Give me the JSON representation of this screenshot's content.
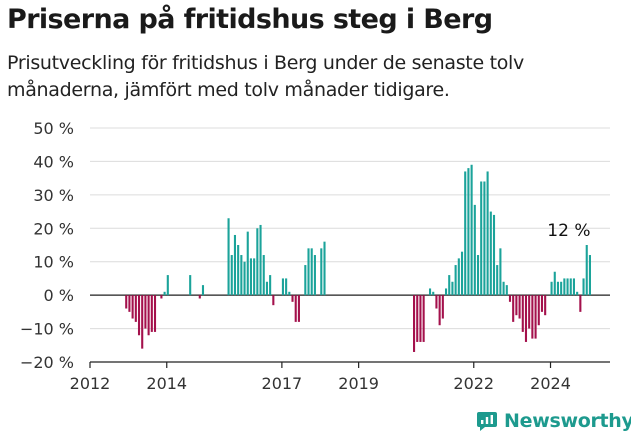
{
  "title": "Priserna på fritidshus steg i Berg",
  "subtitle": "Prisutveckling för fritidshus i Berg under de senaste tolv månaderna, jämfört med tolv månader tidigare.",
  "brand": {
    "name": "Newsworthy",
    "icon": "newsworthy-logo-icon",
    "color": "#1d9a8e"
  },
  "chart_data": {
    "type": "bar",
    "x_ticks": [
      "2012",
      "2014",
      "2017",
      "2019",
      "2022",
      "2024"
    ],
    "y_ticks": [
      "50 %",
      "40 %",
      "30 %",
      "20 %",
      "10 %",
      "0 %",
      "−10 %",
      "−20 %"
    ],
    "ylim": [
      -20,
      50
    ],
    "grid": true,
    "colors": {
      "positive": "#1ba39a",
      "negative": "#a4114c"
    },
    "annotation": {
      "label": "12 %",
      "date": "2025-01"
    },
    "series": [
      {
        "values": [
          [
            "2012-12",
            -4
          ],
          [
            "2013-01",
            -5
          ],
          [
            "2013-02",
            -7
          ],
          [
            "2013-03",
            -8
          ],
          [
            "2013-04",
            -12
          ],
          [
            "2013-05",
            -16
          ],
          [
            "2013-06",
            -10
          ],
          [
            "2013-07",
            -12
          ],
          [
            "2013-08",
            -11
          ],
          [
            "2013-09",
            -11
          ],
          [
            "2013-11",
            -1
          ],
          [
            "2013-12",
            1
          ],
          [
            "2014-01",
            6
          ],
          [
            "2014-08",
            6
          ],
          [
            "2014-11",
            -1
          ],
          [
            "2014-12",
            3
          ],
          [
            "2015-08",
            23
          ],
          [
            "2015-09",
            12
          ],
          [
            "2015-10",
            18
          ],
          [
            "2015-11",
            15
          ],
          [
            "2015-12",
            12
          ],
          [
            "2016-01",
            10
          ],
          [
            "2016-02",
            19
          ],
          [
            "2016-03",
            11
          ],
          [
            "2016-04",
            11
          ],
          [
            "2016-05",
            20
          ],
          [
            "2016-06",
            21
          ],
          [
            "2016-07",
            12
          ],
          [
            "2016-08",
            4
          ],
          [
            "2016-09",
            6
          ],
          [
            "2016-10",
            -3
          ],
          [
            "2017-01",
            5
          ],
          [
            "2017-02",
            5
          ],
          [
            "2017-03",
            1
          ],
          [
            "2017-04",
            -2
          ],
          [
            "2017-05",
            -8
          ],
          [
            "2017-06",
            -8
          ],
          [
            "2017-08",
            9
          ],
          [
            "2017-09",
            14
          ],
          [
            "2017-10",
            14
          ],
          [
            "2017-11",
            12
          ],
          [
            "2018-01",
            14
          ],
          [
            "2018-02",
            16
          ],
          [
            "2020-06",
            -17
          ],
          [
            "2020-07",
            -14
          ],
          [
            "2020-08",
            -14
          ],
          [
            "2020-09",
            -14
          ],
          [
            "2020-11",
            2
          ],
          [
            "2020-12",
            1
          ],
          [
            "2021-01",
            -4
          ],
          [
            "2021-02",
            -9
          ],
          [
            "2021-03",
            -7
          ],
          [
            "2021-04",
            2
          ],
          [
            "2021-05",
            6
          ],
          [
            "2021-06",
            4
          ],
          [
            "2021-07",
            9
          ],
          [
            "2021-08",
            11
          ],
          [
            "2021-09",
            13
          ],
          [
            "2021-10",
            37
          ],
          [
            "2021-11",
            38
          ],
          [
            "2021-12",
            39
          ],
          [
            "2022-01",
            27
          ],
          [
            "2022-02",
            12
          ],
          [
            "2022-03",
            34
          ],
          [
            "2022-04",
            34
          ],
          [
            "2022-05",
            37
          ],
          [
            "2022-06",
            25
          ],
          [
            "2022-07",
            24
          ],
          [
            "2022-08",
            9
          ],
          [
            "2022-09",
            14
          ],
          [
            "2022-10",
            4
          ],
          [
            "2022-11",
            3
          ],
          [
            "2022-12",
            -2
          ],
          [
            "2023-01",
            -8
          ],
          [
            "2023-02",
            -6
          ],
          [
            "2023-03",
            -7
          ],
          [
            "2023-04",
            -11
          ],
          [
            "2023-05",
            -14
          ],
          [
            "2023-06",
            -10
          ],
          [
            "2023-07",
            -13
          ],
          [
            "2023-08",
            -13
          ],
          [
            "2023-09",
            -9
          ],
          [
            "2023-10",
            -5
          ],
          [
            "2023-11",
            -6
          ],
          [
            "2024-01",
            4
          ],
          [
            "2024-02",
            7
          ],
          [
            "2024-03",
            4
          ],
          [
            "2024-04",
            4
          ],
          [
            "2024-05",
            5
          ],
          [
            "2024-06",
            5
          ],
          [
            "2024-07",
            5
          ],
          [
            "2024-08",
            5
          ],
          [
            "2024-09",
            1
          ],
          [
            "2024-10",
            -5
          ],
          [
            "2024-11",
            5
          ],
          [
            "2024-12",
            15
          ],
          [
            "2025-01",
            12
          ]
        ]
      }
    ]
  }
}
